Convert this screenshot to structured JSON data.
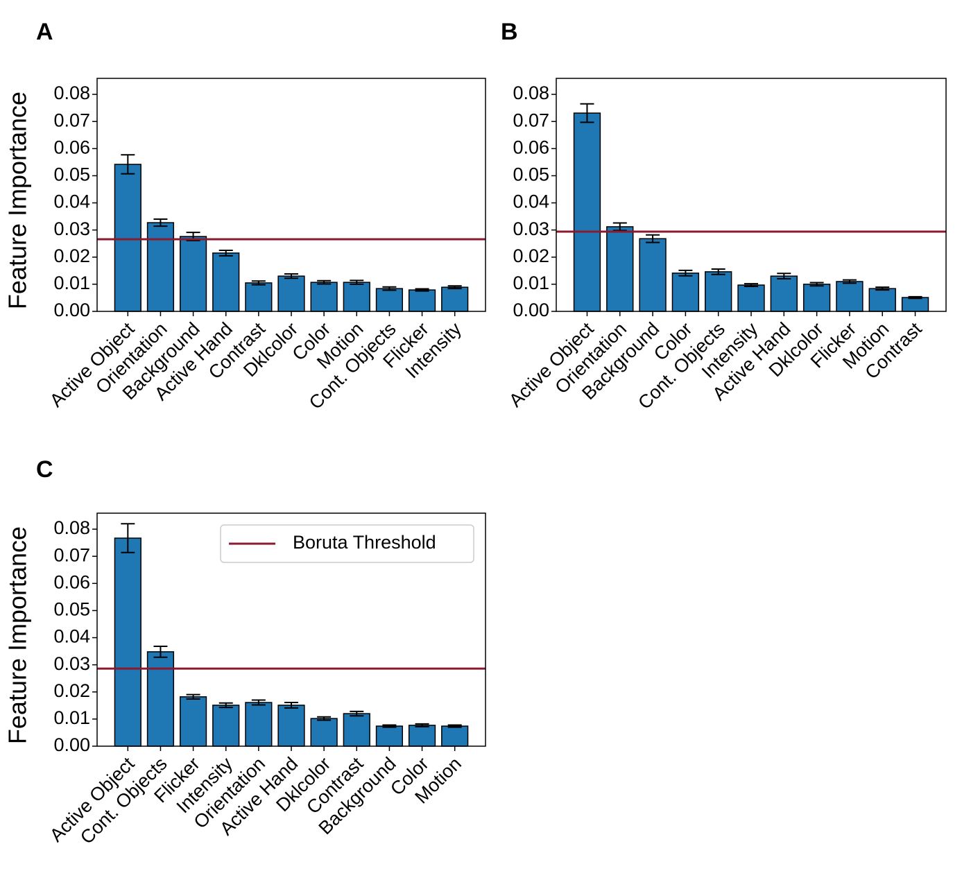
{
  "chart_data": [
    {
      "type": "bar",
      "panel_label": "A",
      "y_label": "Feature Importance",
      "categories": [
        "Active Object",
        "Orientation",
        "Background",
        "Active Hand",
        "Contrast",
        "Dklcolor",
        "Color",
        "Motion",
        "Cont. Objects",
        "Flicker",
        "Intensity"
      ],
      "values": [
        0.0542,
        0.0327,
        0.0276,
        0.0215,
        0.0105,
        0.013,
        0.0107,
        0.0107,
        0.0084,
        0.0079,
        0.0089
      ],
      "errors": [
        0.0035,
        0.0013,
        0.0015,
        0.001,
        0.0007,
        0.0008,
        0.0006,
        0.0007,
        0.0006,
        0.0004,
        0.0005
      ],
      "color": "#1f77b4",
      "threshold": 0.0266,
      "threshold_color": "#8b1a2e",
      "ylim": [
        0,
        0.0859
      ],
      "yticks": [
        {
          "value": 0,
          "label": "0.00"
        },
        0.01,
        0.02,
        0.03,
        0.04,
        0.05,
        0.06,
        0.07,
        0.08
      ]
    },
    {
      "type": "bar",
      "panel_label": "B",
      "categories": [
        "Active Object",
        "Orientation",
        "Background",
        "Color",
        "Cont. Objects",
        "Intensity",
        "Active Hand",
        "Dklcolor",
        "Flicker",
        "Motion",
        "Contrast"
      ],
      "values": [
        0.0731,
        0.0312,
        0.0268,
        0.0141,
        0.0146,
        0.0097,
        0.013,
        0.01,
        0.011,
        0.0084,
        0.0051
      ],
      "errors": [
        0.0034,
        0.0014,
        0.0014,
        0.001,
        0.001,
        0.0005,
        0.001,
        0.0006,
        0.0006,
        0.0005,
        0.0003
      ],
      "color": "#1f77b4",
      "threshold": 0.0294,
      "threshold_color": "#8b1a2e",
      "ylim": [
        0,
        0.0859
      ],
      "yticks": [
        {
          "value": 0,
          "label": "0.00"
        },
        0.01,
        0.02,
        0.03,
        0.04,
        0.05,
        0.06,
        0.07,
        0.08
      ]
    },
    {
      "type": "bar",
      "panel_label": "C",
      "y_label": "Feature Importance",
      "categories": [
        "Active Object",
        "Cont. Objects",
        "Flicker",
        "Intensity",
        "Orientation",
        "Active Hand",
        "Dklcolor",
        "Contrast",
        "Background",
        "Color",
        "Motion"
      ],
      "values": [
        0.0767,
        0.0348,
        0.0182,
        0.0151,
        0.0161,
        0.0151,
        0.0102,
        0.012,
        0.0074,
        0.0077,
        0.0074
      ],
      "errors": [
        0.0053,
        0.002,
        0.0008,
        0.0008,
        0.0009,
        0.001,
        0.0006,
        0.0008,
        0.0004,
        0.0005,
        0.0004
      ],
      "color": "#1f77b4",
      "threshold": 0.0286,
      "threshold_color": "#8b1a2e",
      "threshold_name": "Boruta Threshold",
      "legend": "upper right",
      "ylim": [
        0,
        0.0859
      ],
      "yticks": [
        {
          "value": 0,
          "label": "0.00"
        },
        0.01,
        0.02,
        0.03,
        0.04,
        0.05,
        0.06,
        0.07,
        0.08
      ]
    }
  ]
}
